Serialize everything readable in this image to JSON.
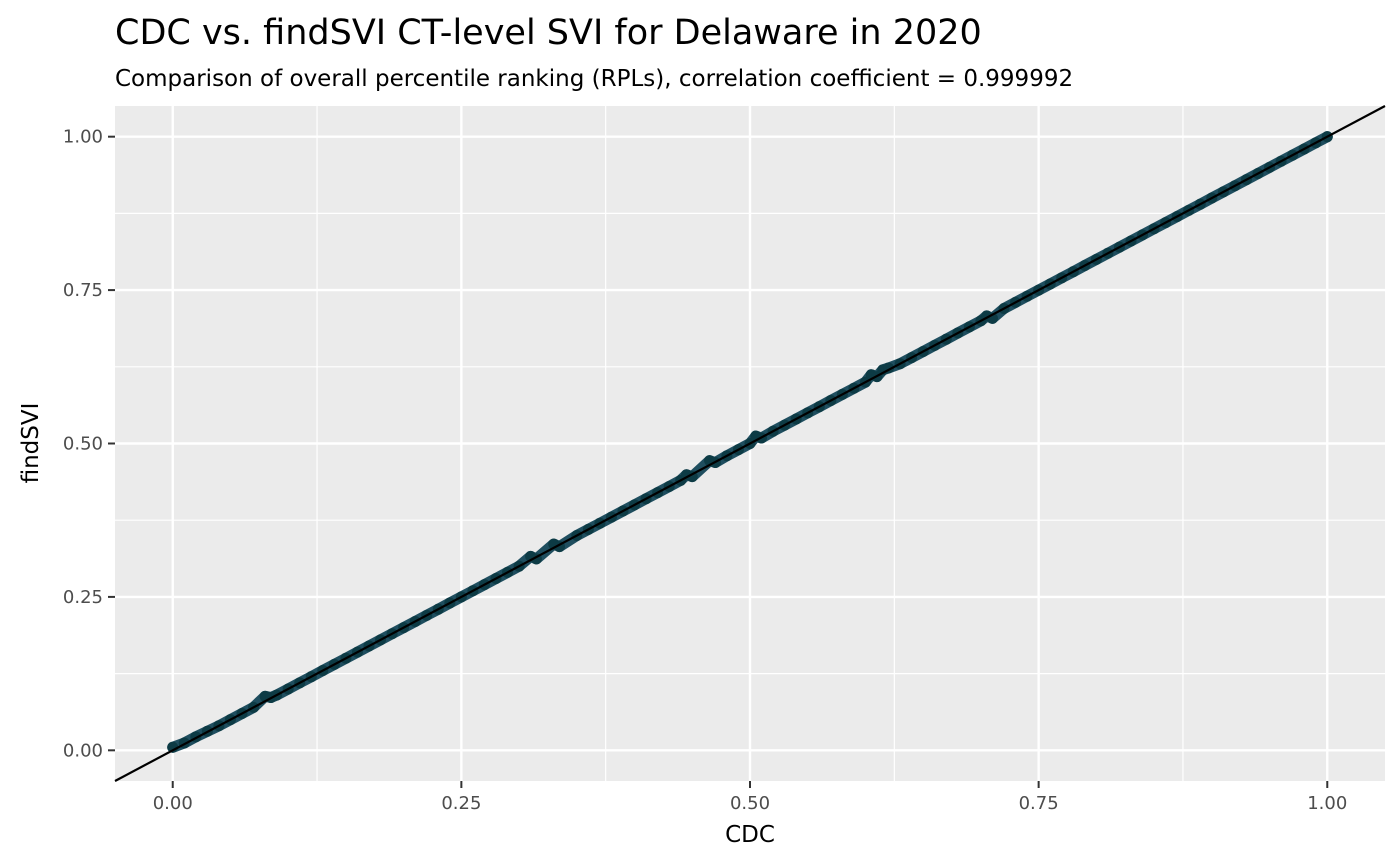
{
  "chart_data": {
    "type": "scatter",
    "title": "CDC vs. findSVI CT-level SVI for Delaware in 2020",
    "subtitle": "Comparison of overall percentile ranking (RPLs), correlation coefficient = 0.999992",
    "xlabel": "CDC",
    "ylabel": "findSVI",
    "xlim": [
      -0.05,
      1.05
    ],
    "ylim": [
      -0.05,
      1.05
    ],
    "x_ticks": [
      0.0,
      0.25,
      0.5,
      0.75,
      1.0
    ],
    "x_tick_labels": [
      "0.00",
      "0.25",
      "0.50",
      "0.75",
      "1.00"
    ],
    "y_ticks": [
      0.0,
      0.25,
      0.5,
      0.75,
      1.0
    ],
    "y_tick_labels": [
      "0.00",
      "0.25",
      "0.50",
      "0.75",
      "1.00"
    ],
    "grid": true,
    "reference_line": {
      "intercept": 0,
      "slope": 1,
      "color": "#000000"
    },
    "point_color": "#1f4e5f",
    "point_outline_color": "#0d3b45",
    "panel_background": "#ebebeb",
    "grid_color": "#ffffff",
    "points": {
      "x": [
        0.0,
        0.01,
        0.02,
        0.03,
        0.04,
        0.05,
        0.06,
        0.07,
        0.08,
        0.085,
        0.09,
        0.1,
        0.11,
        0.12,
        0.13,
        0.14,
        0.15,
        0.16,
        0.17,
        0.18,
        0.19,
        0.2,
        0.21,
        0.22,
        0.23,
        0.24,
        0.25,
        0.26,
        0.27,
        0.28,
        0.29,
        0.3,
        0.31,
        0.315,
        0.33,
        0.335,
        0.35,
        0.36,
        0.37,
        0.38,
        0.39,
        0.4,
        0.41,
        0.42,
        0.43,
        0.44,
        0.445,
        0.45,
        0.465,
        0.47,
        0.48,
        0.49,
        0.5,
        0.505,
        0.51,
        0.52,
        0.53,
        0.54,
        0.55,
        0.56,
        0.57,
        0.58,
        0.59,
        0.6,
        0.605,
        0.61,
        0.615,
        0.62,
        0.63,
        0.64,
        0.65,
        0.66,
        0.67,
        0.68,
        0.69,
        0.7,
        0.705,
        0.71,
        0.72,
        0.73,
        0.74,
        0.75,
        0.76,
        0.77,
        0.78,
        0.79,
        0.8,
        0.81,
        0.82,
        0.83,
        0.84,
        0.85,
        0.86,
        0.87,
        0.88,
        0.89,
        0.9,
        0.91,
        0.92,
        0.93,
        0.94,
        0.95,
        0.96,
        0.97,
        0.98,
        0.99,
        1.0
      ],
      "y": [
        0.005,
        0.012,
        0.022,
        0.031,
        0.04,
        0.05,
        0.06,
        0.07,
        0.088,
        0.086,
        0.09,
        0.1,
        0.11,
        0.12,
        0.13,
        0.14,
        0.15,
        0.16,
        0.17,
        0.18,
        0.19,
        0.2,
        0.21,
        0.22,
        0.23,
        0.24,
        0.25,
        0.26,
        0.27,
        0.28,
        0.29,
        0.3,
        0.316,
        0.312,
        0.336,
        0.332,
        0.35,
        0.36,
        0.37,
        0.38,
        0.39,
        0.4,
        0.41,
        0.42,
        0.43,
        0.44,
        0.449,
        0.446,
        0.472,
        0.469,
        0.48,
        0.49,
        0.5,
        0.512,
        0.509,
        0.52,
        0.53,
        0.54,
        0.55,
        0.56,
        0.57,
        0.58,
        0.59,
        0.6,
        0.612,
        0.609,
        0.62,
        0.623,
        0.63,
        0.64,
        0.65,
        0.66,
        0.67,
        0.68,
        0.69,
        0.7,
        0.708,
        0.704,
        0.72,
        0.73,
        0.74,
        0.75,
        0.76,
        0.77,
        0.78,
        0.79,
        0.8,
        0.81,
        0.82,
        0.83,
        0.84,
        0.85,
        0.86,
        0.87,
        0.88,
        0.89,
        0.9,
        0.91,
        0.92,
        0.93,
        0.94,
        0.95,
        0.96,
        0.97,
        0.98,
        0.99,
        1.0
      ]
    }
  }
}
